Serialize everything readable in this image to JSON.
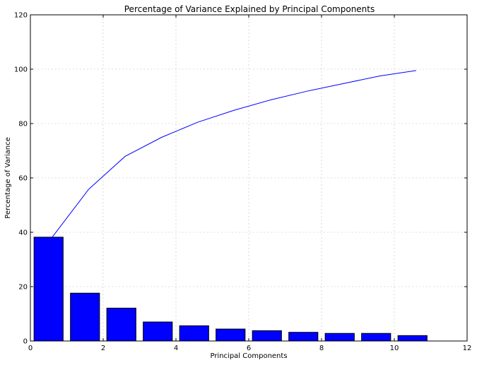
{
  "chart_data": {
    "type": "bar",
    "title": "Percentage of Variance Explained by Principal Components",
    "xlabel": "Principal Components",
    "ylabel": "Percentage of Variance",
    "xlim": [
      0,
      12
    ],
    "ylim": [
      0,
      120
    ],
    "xticks": [
      "0",
      "2",
      "4",
      "6",
      "8",
      "10",
      "12"
    ],
    "yticks": [
      "0",
      "20",
      "40",
      "60",
      "80",
      "100",
      "120"
    ],
    "grid": true,
    "legend": "none",
    "bars": {
      "x_left": [
        0.1,
        1.1,
        2.1,
        3.1,
        4.1,
        5.1,
        6.1,
        7.1,
        8.1,
        9.1,
        10.1
      ],
      "width": 0.8,
      "values": [
        38.2,
        17.6,
        12.1,
        7.0,
        5.6,
        4.4,
        3.8,
        3.2,
        2.8,
        2.8,
        2.0
      ],
      "color": "#0000ff"
    },
    "series": [
      {
        "type": "line",
        "x": [
          0.6,
          1.6,
          2.6,
          3.6,
          4.6,
          5.6,
          6.6,
          7.6,
          8.6,
          9.6,
          10.6
        ],
        "values": [
          38.2,
          55.8,
          67.9,
          74.9,
          80.5,
          84.9,
          88.7,
          91.9,
          94.7,
          97.5,
          99.5
        ],
        "color": "#0000ff"
      }
    ]
  }
}
